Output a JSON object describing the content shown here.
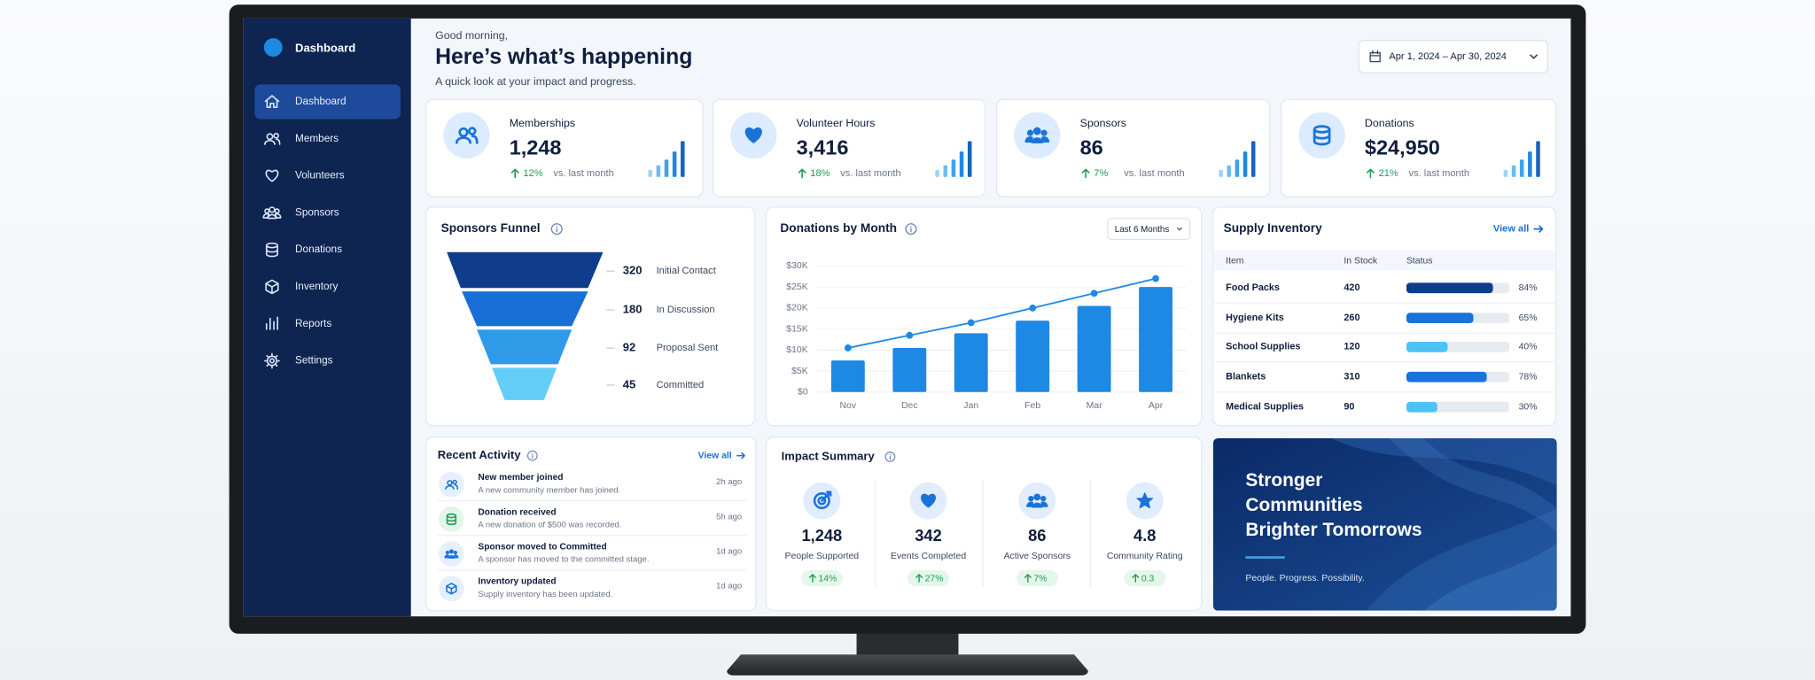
{
  "sidebar": {
    "brand": "Dashboard",
    "active": 0,
    "nav": [
      "Dashboard",
      "Members",
      "Volunteers",
      "Sponsors",
      "Donations",
      "Inventory",
      "Reports",
      "Settings"
    ]
  },
  "header": {
    "greeting": "Good morning,",
    "title": "Here’s what’s happening",
    "subtitle": "A quick look at your impact and progress.",
    "date_range": "Apr 1, 2024 – Apr 30, 2024"
  },
  "kpis": [
    {
      "label": "Memberships",
      "value": "1,248",
      "change": "12%",
      "note": "vs. last month"
    },
    {
      "label": "Volunteer Hours",
      "value": "3,416",
      "change": "18%",
      "note": "vs. last month"
    },
    {
      "label": "Sponsors",
      "value": "86",
      "change": "7%",
      "note": "vs. last month"
    },
    {
      "label": "Donations",
      "value": "$24,950",
      "change": "21%",
      "note": "vs. last month"
    }
  ],
  "funnel": {
    "title": "Sponsors Funnel",
    "stages": [
      {
        "count": "320",
        "label": "Initial Contact"
      },
      {
        "count": "180",
        "label": "In Discussion"
      },
      {
        "count": "92",
        "label": "Proposal Sent"
      },
      {
        "count": "45",
        "label": "Committed"
      }
    ]
  },
  "donations": {
    "title": "Donations by Month",
    "period": "Last 6 Months",
    "chart": {
      "type": "bar",
      "categories": [
        "Nov",
        "Dec",
        "Jan",
        "Feb",
        "Mar",
        "Apr"
      ],
      "series": [
        {
          "type": "bar",
          "color": "#1e88e5",
          "values": [
            7500,
            10500,
            14000,
            17000,
            20500,
            25000
          ]
        },
        {
          "type": "line",
          "color": "#1e88e5",
          "values": [
            10500,
            13500,
            16500,
            20000,
            23500,
            27000
          ]
        }
      ],
      "ylim": [
        0,
        30000
      ],
      "yticks": [
        {
          "value": 0,
          "label": "$0"
        },
        {
          "value": 5000,
          "label": "$5K"
        },
        {
          "value": 10000,
          "label": "$10K"
        },
        {
          "value": 15000,
          "label": "$15K"
        },
        {
          "value": 20000,
          "label": "$20K"
        },
        {
          "value": 25000,
          "label": "$25K"
        },
        {
          "value": 30000,
          "label": "$30K"
        }
      ],
      "grid": true
    }
  },
  "inventory": {
    "title": "Supply Inventory",
    "view_all": "View all",
    "columns": [
      "Item",
      "In Stock",
      "Status"
    ],
    "rows": [
      {
        "item": "Food Packs",
        "in_stock": "420",
        "status": 84,
        "status_label": "84%",
        "color": "#0f3d8c"
      },
      {
        "item": "Hygiene Kits",
        "in_stock": "260",
        "status": 65,
        "status_label": "65%",
        "color": "#1a73d9"
      },
      {
        "item": "School Supplies",
        "in_stock": "120",
        "status": 40,
        "status_label": "40%",
        "color": "#4cc3f5"
      },
      {
        "item": "Blankets",
        "in_stock": "310",
        "status": 78,
        "status_label": "78%",
        "color": "#1a73d9"
      },
      {
        "item": "Medical Supplies",
        "in_stock": "90",
        "status": 30,
        "status_label": "30%",
        "color": "#4cc3f5"
      }
    ]
  },
  "activity": {
    "title": "Recent Activity",
    "view_all": "View all",
    "items": [
      {
        "title": "New member joined",
        "detail": "A new community member has joined.",
        "time": "2h ago"
      },
      {
        "title": "Donation received",
        "detail": "A new donation of $500 was recorded.",
        "time": "5h ago"
      },
      {
        "title": "Sponsor moved to Committed",
        "detail": "A sponsor has moved to the committed stage.",
        "time": "1d ago"
      },
      {
        "title": "Inventory updated",
        "detail": "Supply inventory has been updated.",
        "time": "1d ago"
      }
    ]
  },
  "impact": {
    "title": "Impact Summary",
    "stats": [
      {
        "value": "1,248",
        "label": "People Supported",
        "change": "14%"
      },
      {
        "value": "342",
        "label": "Events Completed",
        "change": "27%"
      },
      {
        "value": "86",
        "label": "Active Sponsors",
        "change": "7%"
      },
      {
        "value": "4.8",
        "label": "Community Rating",
        "change": "0.3"
      }
    ]
  },
  "banner": {
    "lines": [
      "Stronger",
      "Communities",
      "Brighter Tomorrows"
    ],
    "tagline": "People. Progress. Possibility."
  }
}
